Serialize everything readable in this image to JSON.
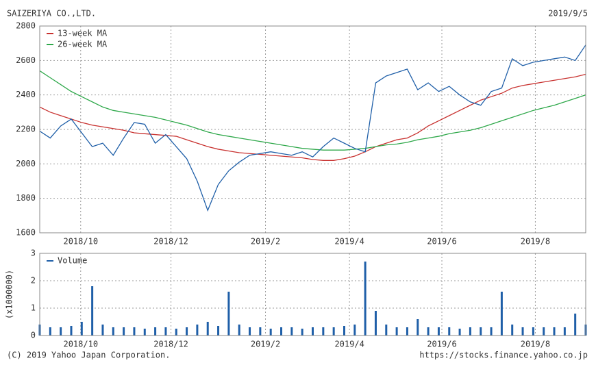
{
  "header": {
    "company": "SAIZERIYA CO.,LTD.",
    "date": "2019/9/5"
  },
  "chart_data": [
    {
      "type": "line",
      "xlim": [
        0,
        52
      ],
      "xticks": [
        {
          "value": 3.9,
          "label": "2018/10"
        },
        {
          "value": 12.5,
          "label": "2018/12"
        },
        {
          "value": 21.5,
          "label": "2019/2"
        },
        {
          "value": 29.5,
          "label": "2019/4"
        },
        {
          "value": 38.3,
          "label": "2019/6"
        },
        {
          "value": 47.2,
          "label": "2019/8"
        }
      ],
      "ylim": [
        1600,
        2800
      ],
      "yticks": [
        1600,
        1800,
        2000,
        2200,
        2400,
        2600,
        2800
      ],
      "grid": true,
      "legend": "upper left",
      "series": [
        {
          "name": "13-week MA",
          "color": "#c8312f",
          "values": [
            2330,
            2300,
            2280,
            2260,
            2240,
            2225,
            2215,
            2205,
            2195,
            2180,
            2175,
            2170,
            2165,
            2160,
            2140,
            2120,
            2100,
            2085,
            2075,
            2065,
            2060,
            2055,
            2050,
            2045,
            2040,
            2035,
            2025,
            2020,
            2020,
            2030,
            2045,
            2070,
            2100,
            2120,
            2140,
            2150,
            2180,
            2220,
            2250,
            2280,
            2310,
            2340,
            2370,
            2390,
            2410,
            2440,
            2455,
            2465,
            2475,
            2485,
            2495,
            2505,
            2520
          ]
        },
        {
          "name": "26-week MA",
          "color": "#2ea84a",
          "values": [
            2540,
            2500,
            2460,
            2420,
            2390,
            2360,
            2330,
            2310,
            2300,
            2290,
            2280,
            2270,
            2255,
            2240,
            2225,
            2205,
            2185,
            2170,
            2160,
            2150,
            2140,
            2130,
            2120,
            2110,
            2100,
            2090,
            2085,
            2080,
            2080,
            2080,
            2085,
            2090,
            2100,
            2110,
            2115,
            2125,
            2140,
            2150,
            2160,
            2175,
            2185,
            2195,
            2210,
            2230,
            2250,
            2270,
            2290,
            2310,
            2325,
            2340,
            2360,
            2380,
            2400
          ]
        },
        {
          "color": "#1f5fa8",
          "values": [
            2190,
            2150,
            2220,
            2260,
            2180,
            2100,
            2120,
            2050,
            2150,
            2240,
            2230,
            2120,
            2170,
            2100,
            2030,
            1900,
            1730,
            1880,
            1960,
            2010,
            2050,
            2060,
            2070,
            2060,
            2050,
            2070,
            2040,
            2100,
            2150,
            2120,
            2090,
            2070,
            2470,
            2510,
            2530,
            2550,
            2430,
            2470,
            2420,
            2450,
            2400,
            2360,
            2340,
            2420,
            2440,
            2610,
            2570,
            2590,
            2600,
            2610,
            2620,
            2600,
            2690
          ]
        }
      ]
    },
    {
      "type": "bar",
      "xlim": [
        0,
        52
      ],
      "xticks": [
        {
          "value": 3.9,
          "label": "2018/10"
        },
        {
          "value": 12.5,
          "label": "2018/12"
        },
        {
          "value": 21.5,
          "label": "2019/2"
        },
        {
          "value": 29.5,
          "label": "2019/4"
        },
        {
          "value": 38.3,
          "label": "2019/6"
        },
        {
          "value": 47.2,
          "label": "2019/8"
        }
      ],
      "ylim": [
        0,
        3
      ],
      "yticks": [
        0,
        1,
        2,
        3
      ],
      "ylabel": "(x1000000)",
      "grid": true,
      "legend": "upper left",
      "series": [
        {
          "name": "Volume",
          "color": "#1f5fa8",
          "values": [
            0.4,
            0.3,
            0.3,
            0.35,
            0.5,
            1.8,
            0.4,
            0.3,
            0.3,
            0.3,
            0.25,
            0.3,
            0.3,
            0.25,
            0.3,
            0.4,
            0.5,
            0.35,
            1.6,
            0.4,
            0.3,
            0.3,
            0.25,
            0.3,
            0.3,
            0.25,
            0.3,
            0.3,
            0.3,
            0.35,
            0.4,
            2.7,
            0.9,
            0.4,
            0.3,
            0.3,
            0.6,
            0.3,
            0.3,
            0.3,
            0.25,
            0.3,
            0.3,
            0.3,
            1.6,
            0.4,
            0.3,
            0.3,
            0.3,
            0.3,
            0.3,
            0.8,
            0.4
          ]
        }
      ]
    }
  ],
  "footer": {
    "copyright": "(C) 2019 Yahoo Japan Corporation.",
    "url": "https://stocks.finance.yahoo.co.jp"
  }
}
